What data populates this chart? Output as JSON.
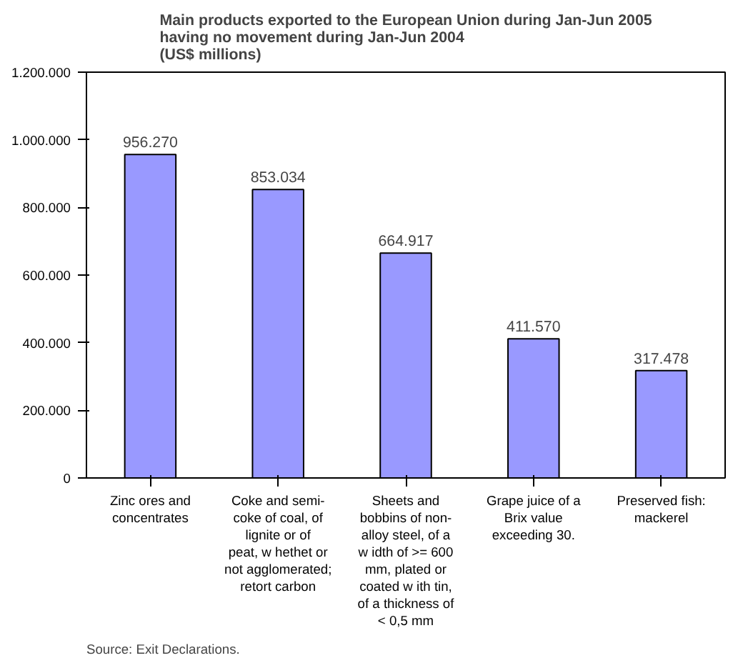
{
  "chart_data": {
    "type": "bar",
    "title": "Main products exported to the European Union during Jan-Jun 2005 having no movement during Jan-Jun 2004\n(US$ millions)",
    "categories": [
      "Zinc ores and concentrates",
      "Coke and semi-coke of coal, of lignite or of peat, w hethet or not agglomerated; retort carbon",
      "Sheets and bobbins of non-alloy steel, of a w idth of >= 600 mm, plated or coated w ith tin, of a thickness of < 0,5 mm",
      "Grape juice of a Brix value exceeding 30.",
      "Preserved fish: mackerel"
    ],
    "values": [
      956270,
      853034,
      664917,
      411570,
      317478
    ],
    "value_labels": [
      "956.270",
      "853.034",
      "664.917",
      "411.570",
      "317.478"
    ],
    "color": "#9999ff",
    "ylim": [
      0,
      1200000
    ],
    "yticks": [
      {
        "value": 0,
        "label": "0"
      },
      {
        "value": 200000,
        "label": "200.000"
      },
      {
        "value": 400000,
        "label": "400.000"
      },
      {
        "value": 600000,
        "label": "600.000"
      },
      {
        "value": 800000,
        "label": "800.000"
      },
      {
        "value": 1000000,
        "label": "1.000.000"
      },
      {
        "value": 1200000,
        "label": "1.200.000"
      }
    ],
    "grid": false,
    "annotations": [
      "Source: Exit Declarations."
    ]
  }
}
